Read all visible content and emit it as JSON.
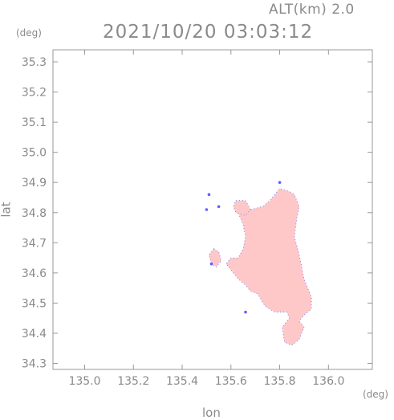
{
  "header": {
    "altitude_label": "ALT(km) 2.0",
    "timestamp": "2021/10/20 03:03:12"
  },
  "chart_data": {
    "type": "heatmap",
    "title": "2021/10/20 03:03:12",
    "subtitle": "ALT(km) 2.0",
    "xlabel": "lon",
    "ylabel": "lat",
    "x_unit": "(deg)",
    "y_unit": "(deg)",
    "xlim": [
      134.87,
      136.18
    ],
    "ylim": [
      34.28,
      35.34
    ],
    "x_ticks": [
      "135.0",
      "135.2",
      "135.4",
      "135.6",
      "135.8",
      "136.0"
    ],
    "y_ticks": [
      "34.3",
      "34.4",
      "34.5",
      "34.6",
      "34.7",
      "34.8",
      "34.9",
      "35.0",
      "35.1",
      "35.2",
      "35.3"
    ],
    "grid": false,
    "fill_color": "#ffc8c8",
    "edge_color": "#6060ff",
    "regions": [
      {
        "lon": [
          135.63,
          135.68,
          135.73,
          135.76,
          135.78,
          135.8,
          135.84,
          135.86,
          135.88,
          135.87,
          135.86,
          135.88,
          135.9,
          135.93,
          135.93,
          135.9,
          135.88,
          135.9,
          135.88,
          135.85,
          135.82,
          135.81,
          135.84,
          135.83,
          135.78,
          135.74,
          135.71,
          135.68,
          135.66,
          135.63,
          135.6,
          135.58,
          135.6,
          135.63,
          135.65,
          135.66,
          135.65
        ],
        "lat": [
          34.8,
          34.81,
          34.82,
          34.84,
          34.86,
          34.88,
          34.87,
          34.86,
          34.82,
          34.78,
          34.72,
          34.66,
          34.58,
          34.52,
          34.48,
          34.46,
          34.44,
          34.42,
          34.38,
          34.36,
          34.37,
          34.42,
          34.45,
          34.47,
          34.47,
          34.49,
          34.53,
          34.54,
          34.56,
          34.58,
          34.61,
          34.63,
          34.65,
          34.65,
          34.68,
          34.72,
          34.76
        ]
      },
      {
        "lon": [
          135.62,
          135.66,
          135.68,
          135.66,
          135.62,
          135.61
        ],
        "lat": [
          34.84,
          34.84,
          34.81,
          34.79,
          34.8,
          34.82
        ]
      },
      {
        "lon": [
          135.53,
          135.55,
          135.56,
          135.54,
          135.52,
          135.51
        ],
        "lat": [
          34.68,
          34.67,
          34.64,
          34.62,
          34.63,
          34.66
        ]
      }
    ],
    "points": [
      {
        "lon": 135.5,
        "lat": 34.81
      },
      {
        "lon": 135.55,
        "lat": 34.82
      },
      {
        "lon": 135.51,
        "lat": 34.86
      },
      {
        "lon": 135.52,
        "lat": 34.63
      },
      {
        "lon": 135.66,
        "lat": 34.47
      },
      {
        "lon": 135.8,
        "lat": 34.9
      }
    ]
  }
}
